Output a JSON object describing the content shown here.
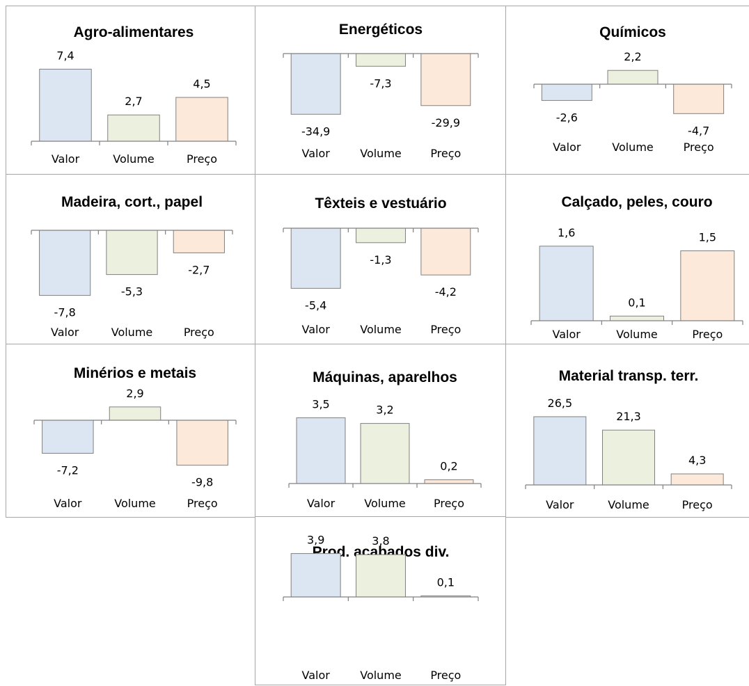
{
  "colors": {
    "valor": "#dce6f2",
    "volume": "#ebf1de",
    "preco": "#fde9d9",
    "bar_stroke": "#808080",
    "axis": "#808080",
    "border": "#a6a6a6"
  },
  "chart_data": [
    {
      "type": "bar",
      "title": "Agro-alimentares",
      "categories": [
        "Valor",
        "Volume",
        "Preço"
      ],
      "values": [
        7.4,
        2.7,
        4.5
      ],
      "labels": [
        "7,4",
        "2,7",
        "4,5"
      ]
    },
    {
      "type": "bar",
      "title": "Energéticos",
      "categories": [
        "Valor",
        "Volume",
        "Preço"
      ],
      "values": [
        -34.9,
        -7.3,
        -29.9
      ],
      "labels": [
        "-34,9",
        "-7,3",
        "-29,9"
      ]
    },
    {
      "type": "bar",
      "title": "Químicos",
      "categories": [
        "Valor",
        "Volume",
        "Preço"
      ],
      "values": [
        -2.6,
        2.2,
        -4.7
      ],
      "labels": [
        "-2,6",
        "2,2",
        "-4,7"
      ]
    },
    {
      "type": "bar",
      "title": "Madeira, cort., papel",
      "categories": [
        "Valor",
        "Volume",
        "Preço"
      ],
      "values": [
        -7.8,
        -5.3,
        -2.7
      ],
      "labels": [
        "-7,8",
        "-5,3",
        "-2,7"
      ]
    },
    {
      "type": "bar",
      "title": "Têxteis e vestuário",
      "categories": [
        "Valor",
        "Volume",
        "Preço"
      ],
      "values": [
        -5.4,
        -1.3,
        -4.2
      ],
      "labels": [
        "-5,4",
        "-1,3",
        "-4,2"
      ]
    },
    {
      "type": "bar",
      "title": "Calçado, peles, couro",
      "categories": [
        "Valor",
        "Volume",
        "Preço"
      ],
      "values": [
        1.6,
        0.1,
        1.5
      ],
      "labels": [
        "1,6",
        "0,1",
        "1,5"
      ]
    },
    {
      "type": "bar",
      "title": "Minérios e metais",
      "categories": [
        "Valor",
        "Volume",
        "Preço"
      ],
      "values": [
        -7.2,
        2.9,
        -9.8
      ],
      "labels": [
        "-7,2",
        "2,9",
        "-9,8"
      ]
    },
    {
      "type": "bar",
      "title": "Máquinas, aparelhos",
      "categories": [
        "Valor",
        "Volume",
        "Preço"
      ],
      "values": [
        3.5,
        3.2,
        0.2
      ],
      "labels": [
        "3,5",
        "3,2",
        "0,2"
      ]
    },
    {
      "type": "bar",
      "title": "Material transp. terr.",
      "categories": [
        "Valor",
        "Volume",
        "Preço"
      ],
      "values": [
        26.5,
        21.3,
        4.3
      ],
      "labels": [
        "26,5",
        "21,3",
        "4,3"
      ]
    },
    {
      "type": "bar",
      "title": "Prod. acabados div.",
      "categories": [
        "Valor",
        "Volume",
        "Preço"
      ],
      "values": [
        3.9,
        3.8,
        0.1
      ],
      "labels": [
        "3,9",
        "3,8",
        "0,1"
      ]
    }
  ]
}
